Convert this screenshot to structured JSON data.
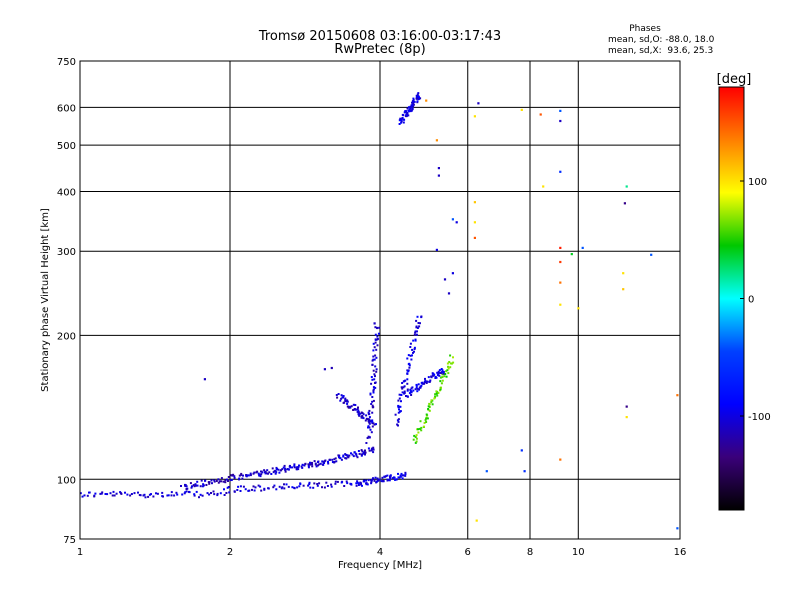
{
  "chart_data": {
    "type": "scatter",
    "title": "Tromsø 20150608 03:16:00-03:17:43",
    "subtitle": "RwPretec (8p)",
    "xlabel": "Frequency [MHz]",
    "ylabel": "Stationary phase Virtual Height [km]",
    "x_scale": "log",
    "y_scale": "log",
    "xlim": [
      1,
      16
    ],
    "ylim": [
      75,
      750
    ],
    "x_ticks": [
      1,
      2,
      4,
      6,
      8,
      10,
      16
    ],
    "y_ticks": [
      75,
      100,
      200,
      300,
      400,
      500,
      600,
      750
    ],
    "grid": true,
    "stats": {
      "heading": "Phases",
      "line_o": "mean, sd,O: -88.0, 18.0",
      "line_x": "mean, sd,X:  93.6, 25.3"
    },
    "colorbar": {
      "label": "[deg]",
      "range": [
        -180,
        180
      ],
      "ticks": [
        100,
        0,
        -100
      ],
      "colors": [
        "#ff0000",
        "#ff7f00",
        "#ffff00",
        "#00c800",
        "#00ffff",
        "#0040ff",
        "#0000ff",
        "#3a007a",
        "#000000"
      ]
    },
    "traces": [
      {
        "from": [
          1.0,
          93
        ],
        "to": [
          1.95,
          93
        ],
        "phase": -105
      },
      {
        "from": [
          1.95,
          95
        ],
        "to": [
          3.6,
          98
        ],
        "phase": -105
      },
      {
        "from": [
          3.6,
          98
        ],
        "to": [
          4.5,
          102
        ],
        "phase": -100
      },
      {
        "from": [
          1.6,
          96
        ],
        "to": [
          2.3,
          103
        ],
        "phase": -110
      },
      {
        "from": [
          2.3,
          103
        ],
        "to": [
          3.0,
          108
        ],
        "phase": -105
      },
      {
        "from": [
          3.0,
          108
        ],
        "to": [
          3.9,
          115
        ],
        "phase": -105
      },
      {
        "from": [
          3.3,
          150
        ],
        "to": [
          3.9,
          130
        ],
        "phase": -110
      },
      {
        "from": [
          3.8,
          120
        ],
        "to": [
          3.95,
          210
        ],
        "phase": -105
      },
      {
        "from": [
          4.3,
          130
        ],
        "to": [
          4.8,
          220
        ],
        "phase": -100
      },
      {
        "from": [
          4.7,
          120
        ],
        "to": [
          5.6,
          180
        ],
        "phase": 60
      },
      {
        "from": [
          4.5,
          150
        ],
        "to": [
          5.4,
          170
        ],
        "phase": -100
      },
      {
        "from": [
          4.4,
          560
        ],
        "to": [
          4.8,
          640
        ],
        "phase": -100
      }
    ],
    "points": [
      {
        "x": 1.78,
        "y": 162,
        "phase": -110
      },
      {
        "x": 3.1,
        "y": 170,
        "phase": -110
      },
      {
        "x": 3.2,
        "y": 171,
        "phase": -115
      },
      {
        "x": 3.9,
        "y": 212,
        "phase": -110
      },
      {
        "x": 4.95,
        "y": 620,
        "phase": 130
      },
      {
        "x": 5.2,
        "y": 512,
        "phase": 130
      },
      {
        "x": 5.25,
        "y": 448,
        "phase": -110
      },
      {
        "x": 5.25,
        "y": 432,
        "phase": -110
      },
      {
        "x": 5.2,
        "y": 302,
        "phase": -100
      },
      {
        "x": 5.4,
        "y": 262,
        "phase": -110
      },
      {
        "x": 5.6,
        "y": 270,
        "phase": -100
      },
      {
        "x": 5.5,
        "y": 245,
        "phase": -110
      },
      {
        "x": 5.6,
        "y": 350,
        "phase": -40
      },
      {
        "x": 5.7,
        "y": 345,
        "phase": -100
      },
      {
        "x": 6.2,
        "y": 380,
        "phase": 110
      },
      {
        "x": 6.2,
        "y": 345,
        "phase": 100
      },
      {
        "x": 6.2,
        "y": 320,
        "phase": 150
      },
      {
        "x": 6.3,
        "y": 612,
        "phase": -110
      },
      {
        "x": 6.2,
        "y": 575,
        "phase": 100
      },
      {
        "x": 6.55,
        "y": 104,
        "phase": -40
      },
      {
        "x": 6.25,
        "y": 82,
        "phase": 100
      },
      {
        "x": 7.7,
        "y": 593,
        "phase": 100
      },
      {
        "x": 7.7,
        "y": 115,
        "phase": -60
      },
      {
        "x": 7.8,
        "y": 104,
        "phase": -60
      },
      {
        "x": 8.4,
        "y": 580,
        "phase": 150
      },
      {
        "x": 8.5,
        "y": 410,
        "phase": 100
      },
      {
        "x": 9.2,
        "y": 590,
        "phase": -40
      },
      {
        "x": 9.2,
        "y": 562,
        "phase": -110
      },
      {
        "x": 9.2,
        "y": 440,
        "phase": -60
      },
      {
        "x": 9.2,
        "y": 305,
        "phase": 170
      },
      {
        "x": 9.2,
        "y": 285,
        "phase": 160
      },
      {
        "x": 9.2,
        "y": 258,
        "phase": 140
      },
      {
        "x": 9.2,
        "y": 232,
        "phase": 100
      },
      {
        "x": 9.2,
        "y": 110,
        "phase": 140
      },
      {
        "x": 9.7,
        "y": 296,
        "phase": 40
      },
      {
        "x": 10.0,
        "y": 228,
        "phase": 100
      },
      {
        "x": 10.2,
        "y": 305,
        "phase": -40
      },
      {
        "x": 12.5,
        "y": 410,
        "phase": 20
      },
      {
        "x": 12.4,
        "y": 378,
        "phase": -130
      },
      {
        "x": 12.3,
        "y": 270,
        "phase": 100
      },
      {
        "x": 12.3,
        "y": 250,
        "phase": 110
      },
      {
        "x": 12.5,
        "y": 142,
        "phase": -130
      },
      {
        "x": 12.5,
        "y": 135,
        "phase": 100
      },
      {
        "x": 14.0,
        "y": 295,
        "phase": -40
      },
      {
        "x": 15.8,
        "y": 150,
        "phase": 140
      },
      {
        "x": 15.8,
        "y": 79,
        "phase": -40
      }
    ]
  }
}
